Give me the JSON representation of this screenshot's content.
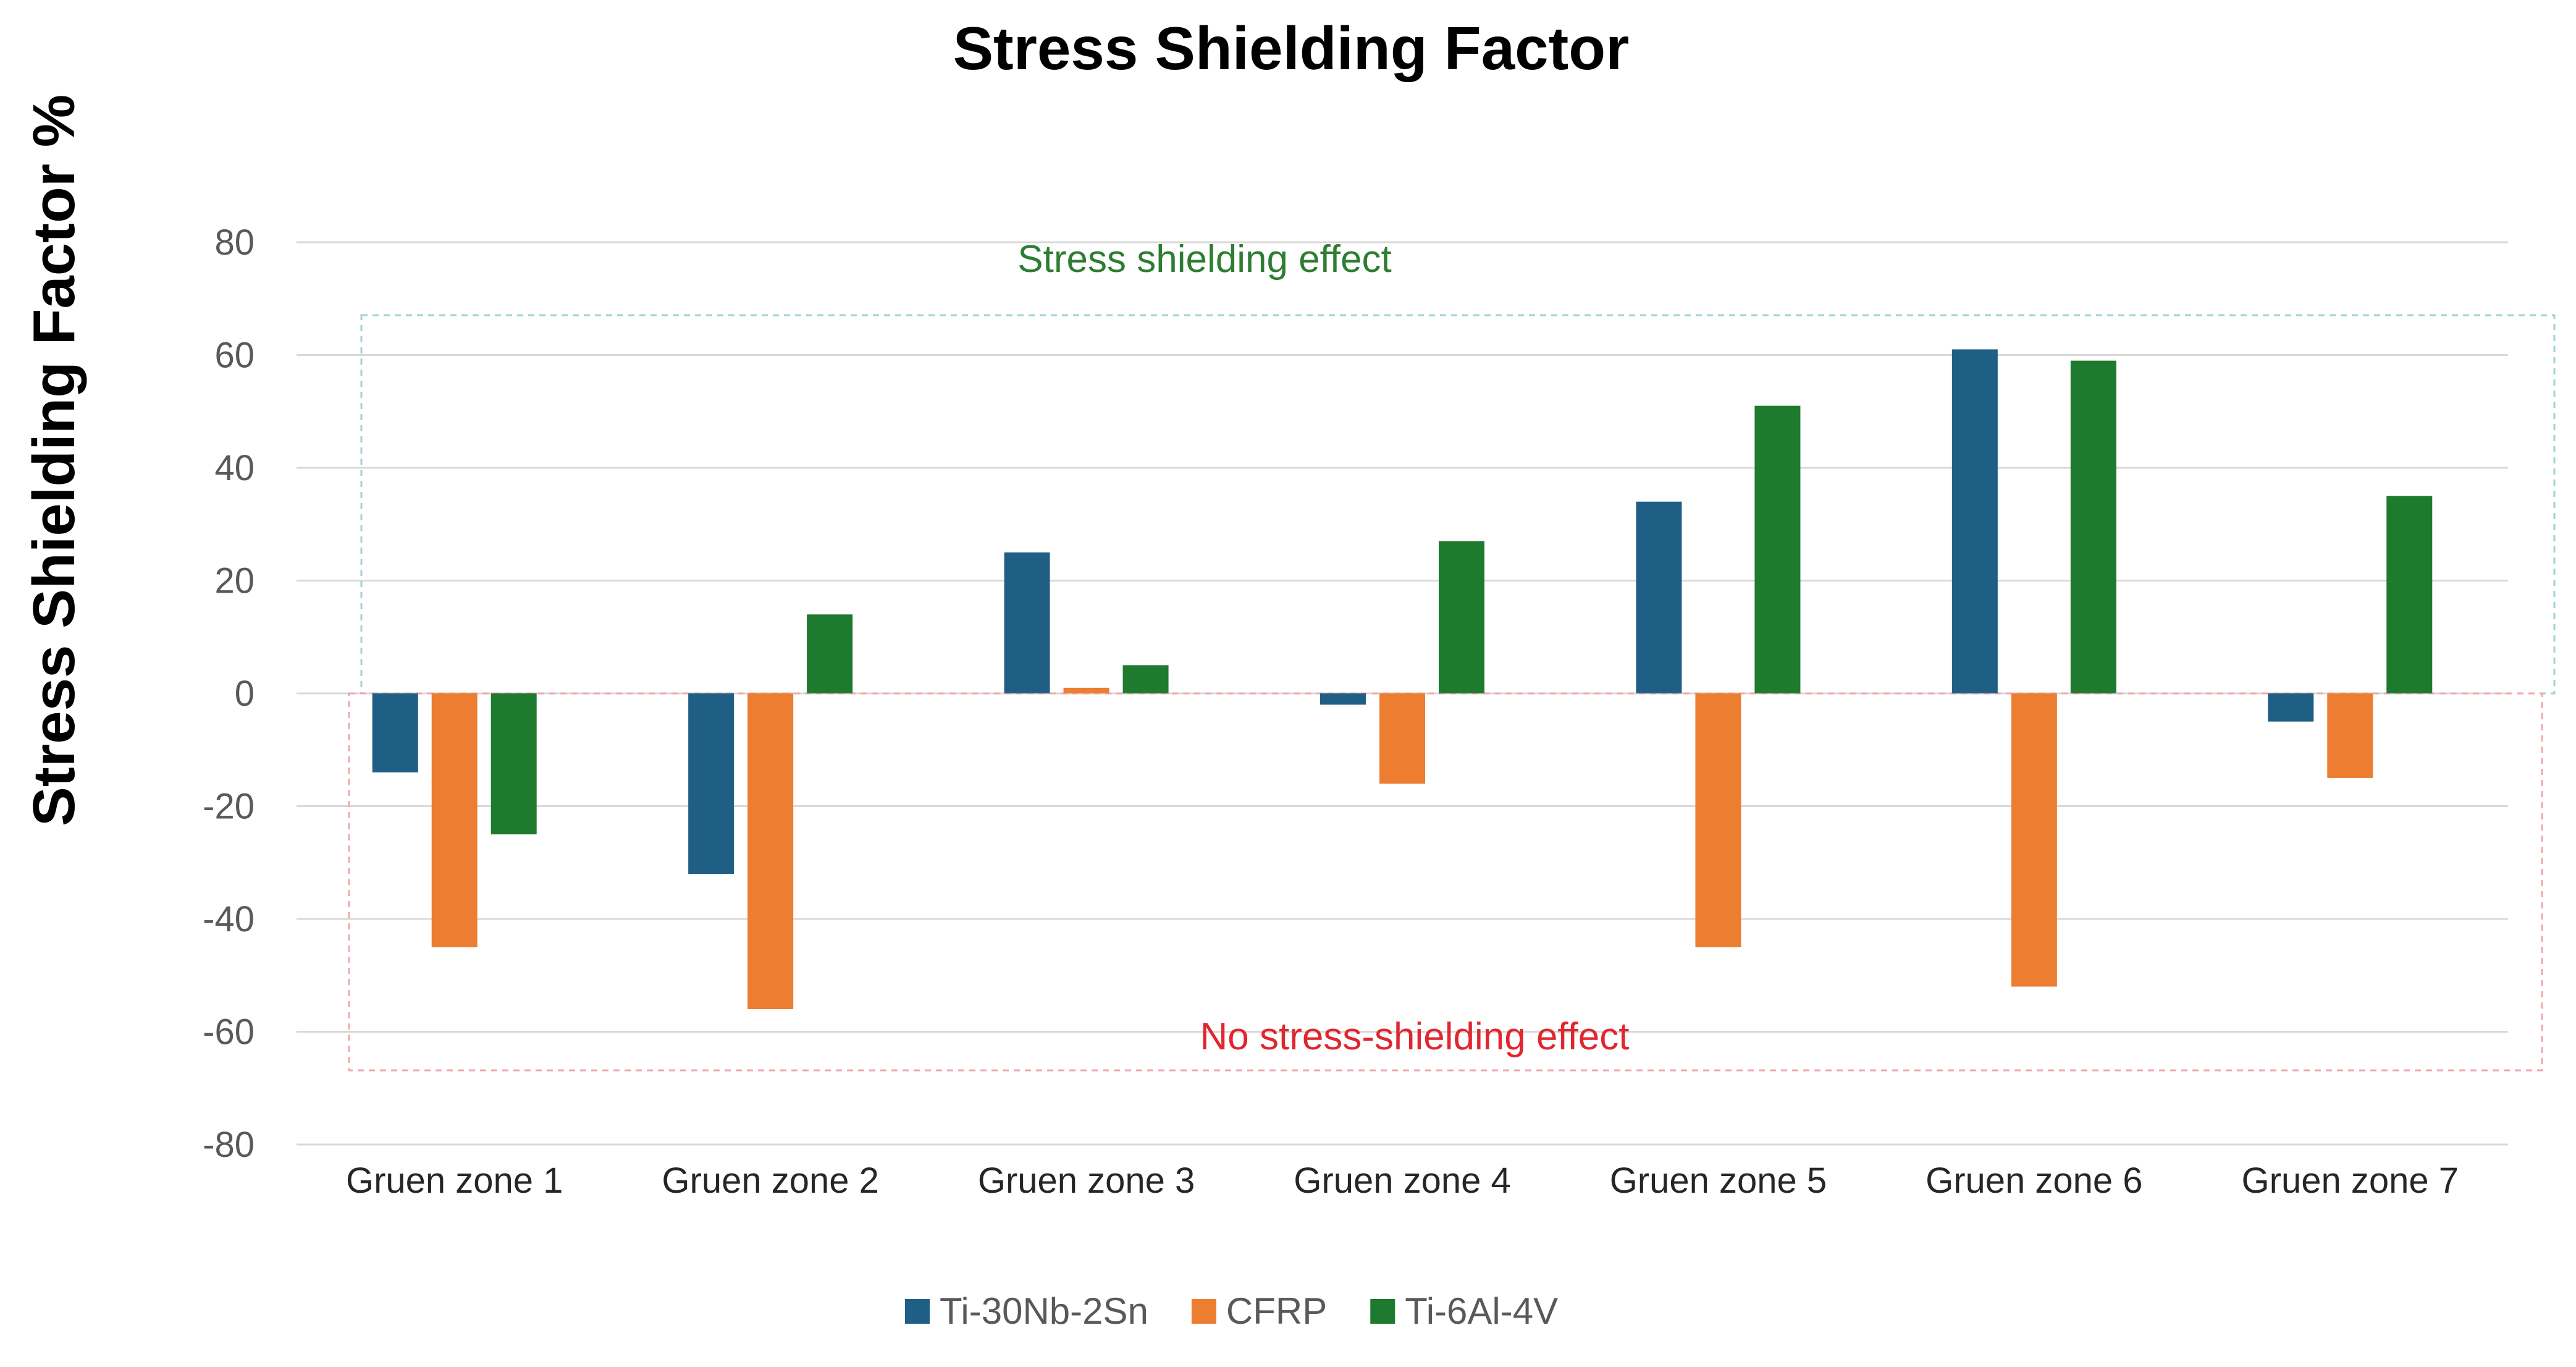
{
  "chart_data": {
    "type": "bar",
    "title": "Stress Shielding Factor",
    "xlabel": "",
    "ylabel": "Stress Shielding Factor  %",
    "ylim": [
      -80,
      80
    ],
    "yticks": [
      80,
      60,
      40,
      20,
      0,
      -20,
      -40,
      -60,
      -80
    ],
    "grid": true,
    "legend_position": "bottom",
    "categories": [
      "Gruen zone 1",
      "Gruen zone 2",
      "Gruen zone 3",
      "Gruen zone 4",
      "Gruen zone 5",
      "Gruen zone 6",
      "Gruen zone 7"
    ],
    "series": [
      {
        "name": "Ti-30Nb-2Sn",
        "color": "#1f5f85",
        "values": [
          -14,
          -32,
          25,
          -2,
          34,
          61,
          -5
        ]
      },
      {
        "name": "CFRP",
        "color": "#ed7d31",
        "values": [
          -45,
          -56,
          1,
          -16,
          -45,
          -52,
          -15
        ]
      },
      {
        "name": "Ti-6Al-4V",
        "color": "#1e7a2e",
        "values": [
          -25,
          14,
          5,
          27,
          51,
          59,
          35
        ]
      }
    ],
    "annotations": [
      {
        "text": "Stress shielding effect",
        "region": "positive",
        "color": "#2e7d32",
        "box_color": "#9fd3d6"
      },
      {
        "text": "No stress-shielding effect",
        "region": "negative",
        "color": "#e0262f",
        "box_color": "#f2a7ab"
      }
    ]
  }
}
